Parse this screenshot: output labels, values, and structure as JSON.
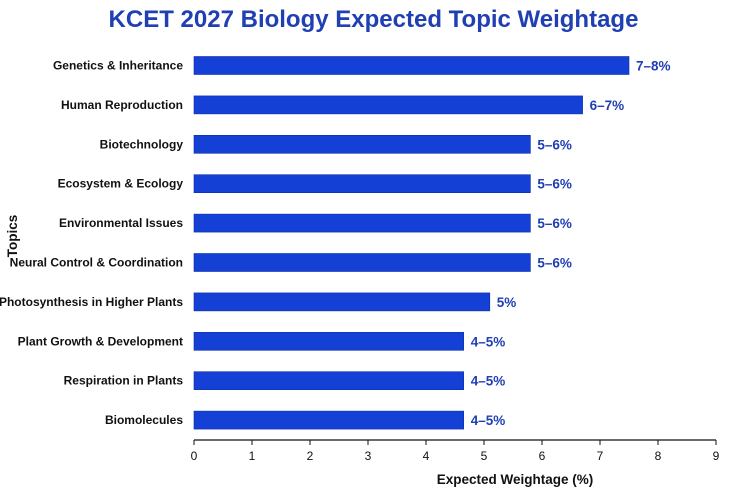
{
  "chart_data": {
    "type": "bar",
    "orientation": "horizontal",
    "title": "KCET 2027 Biology Expected Topic Weightage",
    "xlabel": "Expected Weightage (%)",
    "ylabel": "Topics",
    "xlim": [
      0,
      9
    ],
    "xticks": [
      "0",
      "1",
      "2",
      "3",
      "4",
      "5",
      "6",
      "7",
      "8",
      "9"
    ],
    "grid": false,
    "categories": [
      "Genetics & Inheritance",
      "Human Reproduction",
      "Biotechnology",
      "Ecosystem & Ecology",
      "Environmental Issues",
      "Neural Control & Coordination",
      "Photosynthesis in Higher Plants",
      "Plant Growth & Development",
      "Respiration in Plants",
      "Biomolecules"
    ],
    "values": [
      7.5,
      6.7,
      5.8,
      5.8,
      5.8,
      5.8,
      5.1,
      4.65,
      4.65,
      4.65
    ],
    "data_labels": [
      "7–8%",
      "6–7%",
      "5–6%",
      "5–6%",
      "5–6%",
      "5–6%",
      "5%",
      "4–5%",
      "4–5%",
      "4–5%"
    ],
    "colors": {
      "bar": "#1440d6",
      "bar_edge": "#0d2fa8",
      "label": "#1f3fb3",
      "title": "#1f3fb3",
      "axis": "#111111"
    }
  }
}
